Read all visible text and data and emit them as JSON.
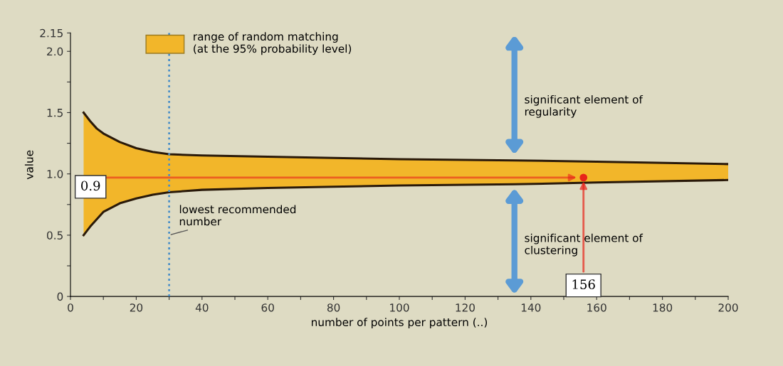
{
  "chart_data": {
    "type": "area",
    "xlabel": "number of points per pattern (..)",
    "ylabel": "value",
    "x": [
      4,
      6,
      8,
      10,
      15,
      20,
      25,
      30,
      40,
      60,
      80,
      100,
      135,
      160,
      200
    ],
    "series": [
      {
        "name": "range of random matching\n(at the 95% probability level)",
        "color": "#f2b62a",
        "values": [
          1.5,
          1.43,
          1.37,
          1.33,
          1.26,
          1.21,
          1.18,
          1.16,
          1.15,
          1.14,
          1.13,
          1.12,
          1.11,
          1.1,
          1.08
        ]
      },
      {
        "type": "line",
        "color": "#2a1a0a",
        "values": [
          0.5,
          0.57,
          0.63,
          0.69,
          0.76,
          0.8,
          0.83,
          0.85,
          0.87,
          0.885,
          0.895,
          0.905,
          0.915,
          0.93,
          0.95
        ]
      },
      {
        "type": "scatter",
        "color": "#e8231a",
        "x": [
          156
        ],
        "values": [
          0.97
        ]
      }
    ],
    "xlim": [
      0,
      200
    ],
    "xticks": [
      0,
      {
        "value": 10,
        "label": null
      },
      20,
      {
        "value": 30,
        "label": null
      },
      40,
      {
        "value": 50,
        "label": null
      },
      60,
      {
        "value": 70,
        "label": null
      },
      80,
      {
        "value": 90,
        "label": null
      },
      100,
      {
        "value": 110,
        "label": null
      },
      120,
      {
        "value": 130,
        "label": null
      },
      140,
      {
        "value": 150,
        "label": null
      },
      160,
      {
        "value": 170,
        "label": null
      },
      180,
      {
        "value": 190,
        "label": null
      },
      200
    ],
    "ylim": [
      0,
      2.15
    ],
    "yticks": [
      0,
      {
        "value": 0.25,
        "label": null
      },
      0.5,
      {
        "value": 0.75,
        "label": null
      },
      {
        "value": 1.0,
        "label": "1.0"
      },
      {
        "value": 1.25,
        "label": null
      },
      1.5,
      {
        "value": 1.75,
        "label": null
      },
      {
        "value": 2.0,
        "label": "2.0"
      },
      2.15
    ],
    "ref_lines": [
      {
        "axis": "x",
        "value": 30,
        "label": "lowest recommended\nnumber",
        "color": "#4a8fc8",
        "line_style": "dotted"
      }
    ],
    "annotations": [
      "significant element of\nregularity",
      "significant element of\nclustering",
      "0.9",
      {
        "text": "156",
        "x": 156,
        "y": 0.97
      }
    ],
    "legend": "top left",
    "grid": false
  }
}
